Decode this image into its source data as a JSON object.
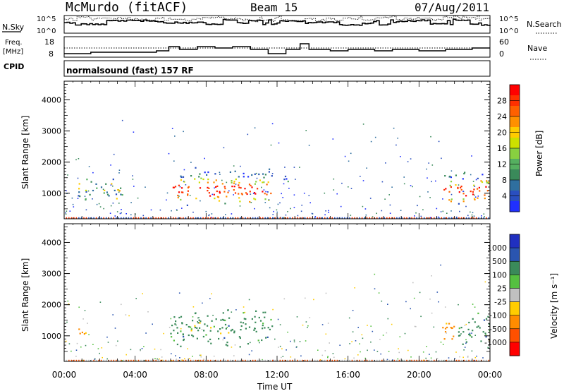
{
  "header": {
    "station": "McMurdo (fitACF)",
    "beam": "Beam 15",
    "date": "07/Aug/2011"
  },
  "status_panels": {
    "nsky_label": "N.Sky",
    "nsearch_label": "N.Search",
    "log_top": "10^5",
    "log_bottom": "10^0",
    "freq_label_line1": "Freq.",
    "freq_label_line2": "[MHz]",
    "freq_ticks": [
      "18",
      "8"
    ],
    "nave_label": "Nave",
    "nave_ticks": [
      "60",
      "0"
    ],
    "cpid_label": "CPID",
    "cpid_text": "normalsound (fast) 157 RF"
  },
  "chart_data": [
    {
      "type": "heatmap",
      "name": "power",
      "ylabel": "Slant Range [km]",
      "xlabel": "Time UT",
      "ylim": [
        180,
        4600
      ],
      "xlim": [
        0,
        24
      ],
      "yticks": [
        1000,
        2000,
        3000,
        4000
      ],
      "xticks": [
        "00:00",
        "04:00",
        "08:00",
        "12:00",
        "16:00",
        "20:00",
        "00:00"
      ],
      "colorbar_label": "Power [dB]",
      "colorbar_ticks": [
        "28",
        "24",
        "20",
        "16",
        "12",
        "8",
        "4"
      ],
      "colorbar_colors": [
        "#ff0000",
        "#ff3000",
        "#ff6000",
        "#ff9000",
        "#ffcc00",
        "#cce000",
        "#88d040",
        "#55b060",
        "#3a8a5a",
        "#2f6f9f",
        "#2a4fbf",
        "#2030ff"
      ],
      "echo_regions": [
        {
          "t_start": 0.7,
          "t_end": 3.3,
          "r_low": 700,
          "r_high": 1500,
          "intensity": "moderate"
        },
        {
          "t_start": 5.9,
          "t_end": 11.7,
          "r_low": 600,
          "r_high": 1900,
          "intensity": "strong"
        },
        {
          "t_start": 12.3,
          "t_end": 12.7,
          "r_low": 1300,
          "r_high": 1900,
          "intensity": "weak"
        },
        {
          "t_start": 21.3,
          "t_end": 24.0,
          "r_low": 600,
          "r_high": 1800,
          "intensity": "strong"
        }
      ]
    },
    {
      "type": "heatmap",
      "name": "velocity",
      "ylabel": "Slant Range [km]",
      "xlabel": "Time UT",
      "ylim": [
        180,
        4600
      ],
      "xlim": [
        0,
        24
      ],
      "yticks": [
        1000,
        2000,
        3000,
        4000
      ],
      "xticks": [
        "00:00",
        "04:00",
        "08:00",
        "12:00",
        "16:00",
        "20:00",
        "00:00"
      ],
      "colorbar_label": "Velocity [m s⁻¹]",
      "colorbar_ticks": [
        "1000",
        "500",
        "100",
        "25",
        "-25",
        "-100",
        "-500",
        "-1000"
      ],
      "colorbar_colors": [
        "#2030c0",
        "#2a55b0",
        "#3a8a5a",
        "#55c040",
        "#c0c0c0",
        "#ffcc00",
        "#ff8c00",
        "#ff5000",
        "#ff0000"
      ],
      "echo_regions": [
        {
          "t_start": 0.7,
          "t_end": 1.3,
          "r_low": 850,
          "r_high": 1400,
          "dominant": "orange"
        },
        {
          "t_start": 5.9,
          "t_end": 11.7,
          "r_low": 600,
          "r_high": 1900,
          "dominant": "green"
        },
        {
          "t_start": 21.3,
          "t_end": 22.2,
          "r_low": 800,
          "r_high": 1700,
          "dominant": "orange"
        },
        {
          "t_start": 22.2,
          "t_end": 24.0,
          "r_low": 600,
          "r_high": 1800,
          "dominant": "green"
        }
      ]
    }
  ]
}
